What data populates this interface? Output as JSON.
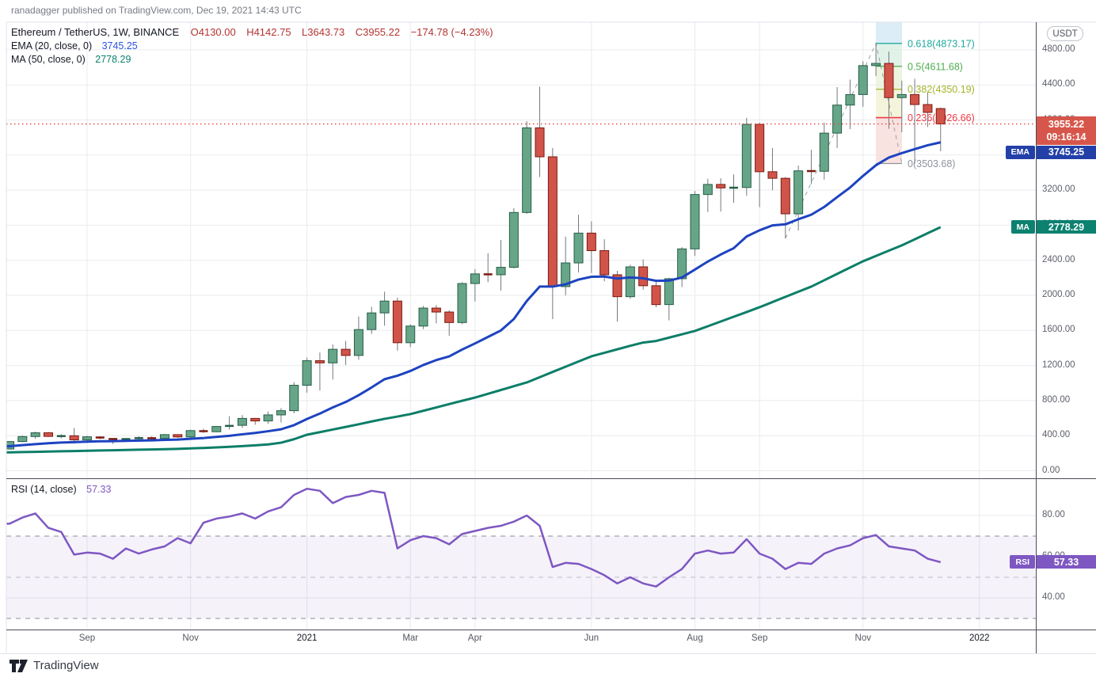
{
  "attribution": "ranadagger published on TradingView.com, Dec 19, 2021 14:43 UTC",
  "legend": {
    "symbol": "Ethereum / TetherUS, 1W, BINANCE",
    "ohlc": {
      "open": "O4130.00",
      "high": "H4142.75",
      "low": "L3643.73",
      "close": "C3955.22",
      "change": "−174.78 (−4.23%)"
    },
    "ema": {
      "label": "EMA (20, close, 0)",
      "value": "3745.25"
    },
    "ma": {
      "label": "MA (50, close, 0)",
      "value": "2778.29"
    },
    "rsi": {
      "label": "RSI (14, close)",
      "value": "57.33"
    }
  },
  "axis": {
    "currency": "USDT",
    "price_ticks": [
      {
        "label": "4800.00",
        "price": 4800
      },
      {
        "label": "4400.00",
        "price": 4400
      },
      {
        "label": "4000.00",
        "price": 4000
      },
      {
        "label": "3600.00",
        "price": 3600
      },
      {
        "label": "3200.00",
        "price": 3200
      },
      {
        "label": "2800.00",
        "price": 2800
      },
      {
        "label": "2400.00",
        "price": 2400
      },
      {
        "label": "2000.00",
        "price": 2000
      },
      {
        "label": "1600.00",
        "price": 1600
      },
      {
        "label": "1200.00",
        "price": 1200
      },
      {
        "label": "800.00",
        "price": 800
      },
      {
        "label": "400.00",
        "price": 400
      },
      {
        "label": "0.00",
        "price": 0
      }
    ],
    "rsi_ticks": [
      {
        "label": "80.00",
        "value": 80
      },
      {
        "label": "60.00",
        "value": 60
      },
      {
        "label": "40.00",
        "value": 40
      }
    ],
    "time_ticks": [
      {
        "label": "Sep",
        "index": 6,
        "major": false
      },
      {
        "label": "Nov",
        "index": 14,
        "major": false
      },
      {
        "label": "2021",
        "index": 23,
        "major": true
      },
      {
        "label": "Mar",
        "index": 31,
        "major": false
      },
      {
        "label": "Apr",
        "index": 36,
        "major": false
      },
      {
        "label": "Jun",
        "index": 45,
        "major": false
      },
      {
        "label": "Aug",
        "index": 53,
        "major": false
      },
      {
        "label": "Sep",
        "index": 58,
        "major": false
      },
      {
        "label": "Nov",
        "index": 66,
        "major": false
      },
      {
        "label": "2022",
        "index": 75,
        "major": true
      }
    ],
    "badges": {
      "price": {
        "line1": "3955.22",
        "line2": "09:16:14"
      },
      "ema": {
        "tag": "EMA",
        "value": "3745.25"
      },
      "ma": {
        "tag": "MA",
        "value": "2778.29"
      },
      "rsi": {
        "tag": "RSI",
        "value": "57.33"
      }
    }
  },
  "fib": {
    "band_x": [
      1106,
      1139
    ],
    "levels": [
      {
        "ratio": "0.618",
        "price": 4873.17,
        "label": "0.618(4873.17)",
        "color": "#1fa99d"
      },
      {
        "ratio": "0.5",
        "price": 4611.68,
        "label": "0.5(4611.68)",
        "color": "#4cae4f"
      },
      {
        "ratio": "0.382",
        "price": 4350.19,
        "label": "0.382(4350.19)",
        "color": "#a6b32b"
      },
      {
        "ratio": "0.236",
        "price": 4026.66,
        "label": "0.236(4026.66)",
        "color": "#ef3a42"
      },
      {
        "ratio": "0",
        "price": 3503.68,
        "label": "0(3503.68)",
        "color": "#8f939c"
      }
    ],
    "band_fills": [
      "#d4e9f5",
      "#d9efe3",
      "#e8f1d8",
      "#f0f1d2",
      "#f7dcd9"
    ],
    "trend_anchors": [
      {
        "index": 60,
        "price": 2650
      },
      {
        "index": 67,
        "price": 4873.17
      },
      {
        "index": 69,
        "price": 3503.68
      }
    ]
  },
  "colors": {
    "up_fill": "#67a588",
    "up_border": "#265f47",
    "down_fill": "#d0544a",
    "down_border": "#7c1a10",
    "wick": "#75787f",
    "ema": "#1d43c0",
    "ma": "#0c7e68",
    "rsi": "#7e57c2",
    "price_line": "#dd5146",
    "grid": "#e9ebef",
    "separator": "#4a4e57",
    "border_light": "#e0e3eb",
    "badge_price": "#d7564b",
    "badge_ema": "#2340a8",
    "badge_ma": "#0c8170",
    "badge_rsi": "#7e57c2",
    "rsi_dash": "#8b8f9b",
    "rsi_dash_mid": "#b9bcc6",
    "fib_trend": "#9aa0a6"
  },
  "logo": {
    "text": "TradingView"
  },
  "chart_data": {
    "type": "candlestick",
    "title": "Ethereum / TetherUS",
    "exchange": "BINANCE",
    "interval": "1W",
    "current": {
      "open": 4130.0,
      "high": 4142.75,
      "low": 3643.73,
      "close": 3955.22,
      "change": -174.78,
      "change_pct": -4.23,
      "countdown": "09:16:14",
      "ema20": 3745.25,
      "ma50": 2778.29,
      "rsi14": 57.33
    },
    "price_axis": {
      "min": 0,
      "max": 4800,
      "step": 400,
      "currency": "USDT"
    },
    "rsi_axis": {
      "ticks": [
        80,
        60,
        40
      ],
      "band_levels": [
        70,
        50,
        30
      ],
      "current": 57.33
    },
    "fib_levels": [
      {
        "ratio": 0.618,
        "price": 4873.17
      },
      {
        "ratio": 0.5,
        "price": 4611.68
      },
      {
        "ratio": 0.382,
        "price": 4350.19
      },
      {
        "ratio": 0.236,
        "price": 4026.66
      },
      {
        "ratio": 0,
        "price": 3503.68
      }
    ],
    "candles": [
      [
        248,
        335,
        240,
        333
      ],
      [
        333,
        403,
        325,
        390
      ],
      [
        390,
        446,
        365,
        433
      ],
      [
        433,
        444,
        385,
        392
      ],
      [
        392,
        416,
        370,
        399
      ],
      [
        399,
        488,
        310,
        352
      ],
      [
        352,
        398,
        316,
        387
      ],
      [
        387,
        394,
        360,
        371
      ],
      [
        371,
        371,
        304,
        353
      ],
      [
        353,
        370,
        335,
        370
      ],
      [
        370,
        395,
        328,
        374
      ],
      [
        374,
        394,
        357,
        368
      ],
      [
        368,
        420,
        365,
        412
      ],
      [
        412,
        412,
        372,
        386
      ],
      [
        386,
        468,
        370,
        458
      ],
      [
        458,
        480,
        430,
        445
      ],
      [
        445,
        510,
        440,
        505
      ],
      [
        505,
        623,
        470,
        518
      ],
      [
        518,
        635,
        488,
        597
      ],
      [
        597,
        598,
        525,
        568
      ],
      [
        568,
        676,
        535,
        637
      ],
      [
        637,
        715,
        550,
        685
      ],
      [
        685,
        1011,
        655,
        975
      ],
      [
        975,
        1290,
        890,
        1255
      ],
      [
        1255,
        1348,
        915,
        1230
      ],
      [
        1230,
        1440,
        1040,
        1385
      ],
      [
        1385,
        1480,
        1207,
        1315
      ],
      [
        1315,
        1760,
        1265,
        1610
      ],
      [
        1610,
        1870,
        1560,
        1800
      ],
      [
        1800,
        2042,
        1655,
        1935
      ],
      [
        1935,
        1975,
        1370,
        1460
      ],
      [
        1460,
        1670,
        1410,
        1650
      ],
      [
        1650,
        1880,
        1615,
        1855
      ],
      [
        1855,
        1890,
        1680,
        1810
      ],
      [
        1810,
        1830,
        1540,
        1690
      ],
      [
        1690,
        2150,
        1670,
        2135
      ],
      [
        2135,
        2300,
        1930,
        2245
      ],
      [
        2245,
        2480,
        2150,
        2235
      ],
      [
        2235,
        2632,
        2055,
        2320
      ],
      [
        2320,
        2993,
        2305,
        2945
      ],
      [
        2945,
        3986,
        2930,
        3910
      ],
      [
        3910,
        4380,
        3350,
        3580
      ],
      [
        3580,
        3680,
        1729,
        2100
      ],
      [
        2100,
        2670,
        2000,
        2370
      ],
      [
        2370,
        2920,
        2260,
        2710
      ],
      [
        2710,
        2845,
        2255,
        2510
      ],
      [
        2510,
        2640,
        2160,
        2235
      ],
      [
        2235,
        2280,
        1700,
        1985
      ],
      [
        1985,
        2350,
        1960,
        2325
      ],
      [
        2325,
        2410,
        2065,
        2110
      ],
      [
        2110,
        2170,
        1865,
        1895
      ],
      [
        1895,
        2200,
        1715,
        2190
      ],
      [
        2190,
        2550,
        2095,
        2530
      ],
      [
        2530,
        3190,
        2450,
        3150
      ],
      [
        3150,
        3330,
        2950,
        3265
      ],
      [
        3265,
        3335,
        2955,
        3225
      ],
      [
        3225,
        3380,
        3055,
        3230
      ],
      [
        3230,
        4025,
        3135,
        3950
      ],
      [
        3950,
        3970,
        3005,
        3410
      ],
      [
        3410,
        3680,
        3200,
        3335
      ],
      [
        3335,
        3350,
        2650,
        2930
      ],
      [
        2930,
        3480,
        2740,
        3420
      ],
      [
        3420,
        3660,
        3270,
        3415
      ],
      [
        3415,
        3970,
        3320,
        3850
      ],
      [
        3850,
        4375,
        3680,
        4170
      ],
      [
        4170,
        4460,
        3895,
        4290
      ],
      [
        4290,
        4670,
        4150,
        4620
      ],
      [
        4620,
        4873,
        4500,
        4645
      ],
      [
        4645,
        4780,
        3900,
        4255
      ],
      [
        4255,
        4450,
        3860,
        4290
      ],
      [
        4290,
        4470,
        3504,
        4176
      ],
      [
        4176,
        4312,
        3920,
        4086
      ],
      [
        4130,
        4142.75,
        3643.73,
        3955.22
      ]
    ],
    "ema20": [
      280,
      292,
      304,
      314,
      322,
      326,
      332,
      336,
      338,
      341,
      344,
      347,
      352,
      356,
      365,
      373,
      386,
      398,
      416,
      431,
      451,
      473,
      520,
      590,
      652,
      722,
      784,
      862,
      950,
      1044,
      1084,
      1138,
      1206,
      1262,
      1304,
      1382,
      1452,
      1526,
      1600,
      1730,
      1936,
      2100,
      2100,
      2126,
      2180,
      2212,
      2214,
      2192,
      2204,
      2195,
      2166,
      2168,
      2204,
      2294,
      2386,
      2466,
      2538,
      2672,
      2742,
      2798,
      2810,
      2868,
      2920,
      3008,
      3120,
      3230,
      3362,
      3484,
      3572,
      3622,
      3668,
      3712,
      3745
    ],
    "ma50": [
      210,
      213,
      216,
      219,
      222,
      225,
      228,
      231,
      234,
      237,
      240,
      243,
      246,
      250,
      255,
      260,
      266,
      273,
      281,
      290,
      300,
      320,
      360,
      411,
      440,
      470,
      500,
      530,
      562,
      592,
      618,
      646,
      684,
      722,
      760,
      798,
      835,
      878,
      921,
      964,
      1007,
      1067,
      1127,
      1186,
      1246,
      1305,
      1345,
      1385,
      1425,
      1462,
      1480,
      1518,
      1556,
      1594,
      1648,
      1702,
      1756,
      1810,
      1865,
      1924,
      1983,
      2042,
      2100,
      2172,
      2245,
      2317,
      2389,
      2449,
      2510,
      2570,
      2639,
      2709,
      2778
    ],
    "rsi14": [
      76,
      79,
      81,
      74,
      72,
      61,
      62,
      61.5,
      59,
      64,
      61.5,
      63.5,
      65,
      69,
      66.5,
      76.5,
      78.5,
      79.5,
      81,
      78.5,
      82,
      84,
      90,
      93,
      92,
      86,
      89,
      90,
      92,
      91,
      64,
      68,
      70,
      69,
      66,
      71,
      72.5,
      74,
      75,
      77,
      80,
      75,
      55,
      57,
      56.5,
      54,
      51,
      47,
      50,
      47,
      45.5,
      50,
      54,
      61.5,
      63,
      61.5,
      62,
      68.5,
      61.5,
      59,
      54,
      57,
      56.5,
      61.5,
      64,
      65.5,
      69,
      70.5,
      65,
      64,
      63,
      59,
      57.33
    ]
  }
}
